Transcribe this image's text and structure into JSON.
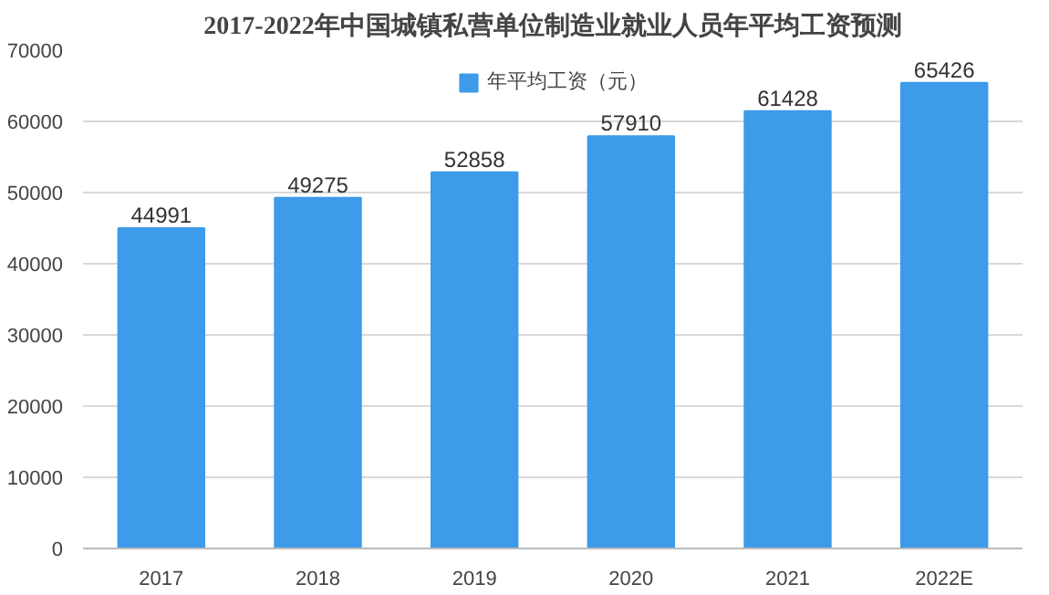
{
  "chart_data": {
    "type": "bar",
    "title": "2017-2022年中国城镇私营单位制造业就业人员年平均工资预测",
    "categories": [
      "2017",
      "2018",
      "2019",
      "2020",
      "2021",
      "2022E"
    ],
    "series": [
      {
        "name": "年平均工资（元）",
        "color": "#3d9be9",
        "values": [
          44991,
          49275,
          52858,
          57910,
          61428,
          65426
        ]
      }
    ],
    "ylim": [
      0,
      70000
    ],
    "yticks": [
      0,
      10000,
      20000,
      30000,
      40000,
      50000,
      60000,
      70000
    ],
    "grid": "y",
    "legend": "top",
    "data_labels": true
  }
}
